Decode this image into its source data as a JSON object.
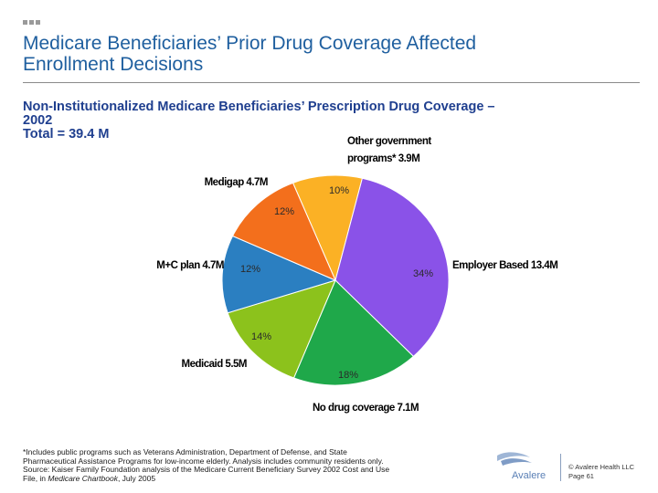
{
  "slide": {
    "title_line1": "Medicare Beneficiaries’ Prior Drug Coverage Affected",
    "title_line2": "Enrollment Decisions",
    "subtitle_line1": "Non-Institutionalized Medicare Beneficiaries’ Prescription Drug Coverage –",
    "subtitle_line2": "2002",
    "subtitle_line3": "Total = 39.4 M",
    "footnote_line1": "*Includes public programs such as Veterans Administration, Department of Defense, and State",
    "footnote_line2": "Pharmaceutical Assistance Programs for low-income elderly. Analysis includes community residents only.",
    "footnote_line3": "Source: Kaiser Family Foundation analysis of the Medicare Current Beneficiary Survey 2002 Cost and Use",
    "footnote_line4_a": "File, in ",
    "footnote_line4_b": "Medicare Chartbook",
    "footnote_line4_c": ", July 2005",
    "logo_text": "Avalere",
    "copyright_line1": "© Avalere Health LLC",
    "copyright_line2": "Page 61",
    "title_color": "#1f5f9f",
    "subtitle_color": "#1f3f8f"
  },
  "chart_data": {
    "type": "pie",
    "title": "Non-Institutionalized Medicare Beneficiaries’ Prescription Drug Coverage – 2002",
    "total": "Total = 39.4 M",
    "slices": [
      {
        "category": "Other government programs* 3.9M",
        "label_line1": "Other government",
        "label_line2": "programs* 3.9M",
        "value_millions": 3.9,
        "percent_label": "10%",
        "color": "#fbb125"
      },
      {
        "category": "Employer Based 13.4M",
        "label_line1": "Employer Based 13.4M",
        "value_millions": 13.4,
        "percent_label": "34%",
        "color": "#8a52e8"
      },
      {
        "category": "No drug coverage 7.1M",
        "label_line1": "No drug coverage 7.1M",
        "value_millions": 7.1,
        "percent_label": "18%",
        "color": "#1fa84a"
      },
      {
        "category": "Medicaid 5.5M",
        "label_line1": "Medicaid 5.5M",
        "value_millions": 5.5,
        "percent_label": "14%",
        "color": "#8cc21c"
      },
      {
        "category": "M+C plan 4.7M",
        "label_line1": "M+C plan 4.7M",
        "value_millions": 4.7,
        "percent_label": "12%",
        "color": "#2b7fc1"
      },
      {
        "category": "Medigap 4.7M",
        "label_line1": "Medigap 4.7M",
        "value_millions": 4.7,
        "percent_label": "12%",
        "color": "#f36f1c"
      }
    ]
  }
}
